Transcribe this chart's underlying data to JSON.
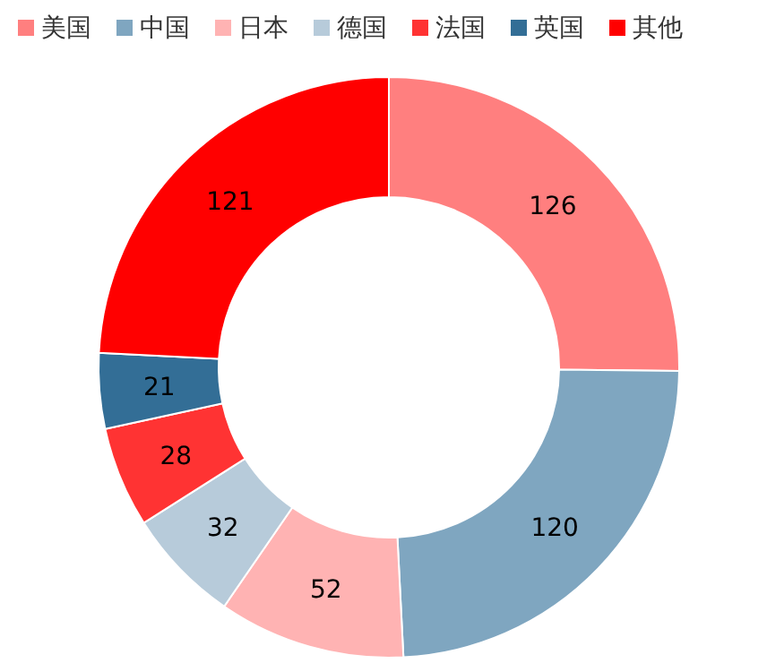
{
  "chart_data": {
    "type": "donut",
    "categories": [
      "美国",
      "中国",
      "日本",
      "德国",
      "法国",
      "英国",
      "其他"
    ],
    "values": [
      126,
      120,
      52,
      32,
      28,
      21,
      121
    ],
    "colors": [
      "#ff7f7f",
      "#7fa6c0",
      "#ffb3b3",
      "#b7cbda",
      "#ff3333",
      "#336e96",
      "#ff0000"
    ],
    "data_labels": true,
    "legend": "top"
  }
}
